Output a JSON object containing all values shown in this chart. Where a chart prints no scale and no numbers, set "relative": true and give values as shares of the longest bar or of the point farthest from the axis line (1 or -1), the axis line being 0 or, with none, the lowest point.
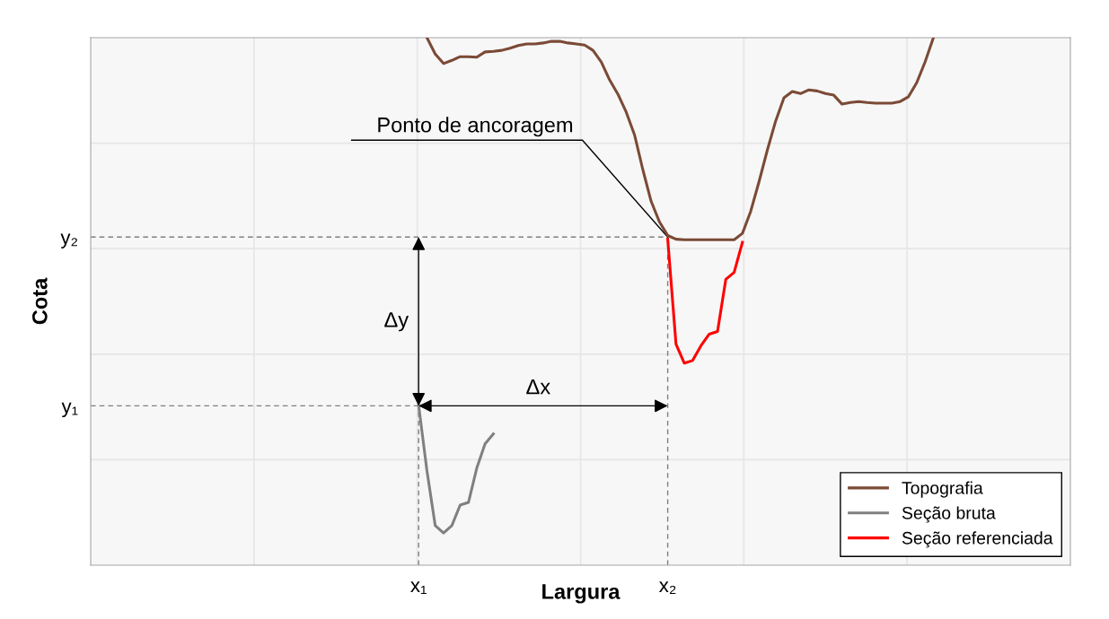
{
  "chart_data": {
    "type": "line",
    "xlabel": "Largura",
    "ylabel": "Cota",
    "relative": true,
    "categories": [
      null,
      null,
      null,
      null,
      null,
      null,
      null,
      null,
      null,
      null,
      null,
      null,
      null,
      null,
      null,
      null,
      null,
      null,
      null,
      null,
      null,
      null,
      null,
      null,
      null,
      null,
      null,
      null,
      null,
      null,
      null,
      null,
      null,
      null,
      null,
      null,
      null,
      null,
      null,
      "x₁",
      null,
      null,
      null,
      null,
      null,
      null,
      null,
      null,
      null,
      null,
      null,
      null,
      null,
      null,
      null,
      null,
      null,
      null,
      null,
      null,
      null,
      null,
      null,
      null,
      null,
      null,
      null,
      null,
      null,
      "x₂",
      null,
      null,
      null,
      null,
      null,
      null,
      null,
      null,
      null,
      null,
      null,
      null,
      null,
      null,
      null,
      null,
      null,
      null,
      null,
      null,
      null,
      null,
      null,
      null,
      null,
      null,
      null,
      null,
      null,
      null,
      null,
      null,
      null,
      null,
      null,
      null,
      null,
      null,
      null,
      null,
      null,
      null,
      null,
      null,
      null,
      null,
      null,
      null
    ],
    "grid": true,
    "legend": "bottom right",
    "series": [
      {
        "name": "Topografia",
        "color": "#7b4a36",
        "values": [
          null,
          null,
          null,
          null,
          null,
          null,
          null,
          null,
          null,
          null,
          null,
          null,
          null,
          null,
          null,
          null,
          null,
          null,
          null,
          null,
          null,
          null,
          null,
          null,
          null,
          null,
          null,
          null,
          null,
          null,
          null,
          null,
          null,
          null,
          null,
          null,
          null,
          null,
          null,
          null,
          1,
          0.969,
          0.951,
          0.957,
          0.964,
          0.964,
          0.963,
          0.973,
          0.974,
          0.976,
          0.98,
          0.985,
          0.988,
          0.988,
          0.99,
          0.993,
          0.993,
          0.99,
          0.988,
          0.986,
          0.976,
          0.954,
          0.92,
          0.893,
          0.859,
          0.816,
          0.75,
          0.69,
          0.651,
          0.625,
          0.618,
          0.617,
          0.617,
          0.617,
          0.617,
          0.617,
          0.617,
          0.617,
          0.629,
          0.671,
          0.727,
          0.787,
          0.842,
          0.886,
          0.898,
          0.894,
          0.901,
          0.899,
          0.894,
          0.891,
          0.874,
          0.877,
          0.879,
          0.877,
          0.876,
          0.876,
          0.876,
          0.879,
          0.888,
          0.915,
          0.954,
          1,
          null,
          null,
          null,
          null,
          null,
          null,
          null,
          null,
          null,
          null,
          null,
          null,
          null,
          null,
          null,
          null
        ]
      },
      {
        "name": "Seção bruta",
        "color": "#808080",
        "values": [
          null,
          null,
          null,
          null,
          null,
          null,
          null,
          null,
          null,
          null,
          null,
          null,
          null,
          null,
          null,
          null,
          null,
          null,
          null,
          null,
          null,
          null,
          null,
          null,
          null,
          null,
          null,
          null,
          null,
          null,
          null,
          null,
          null,
          null,
          null,
          null,
          null,
          null,
          null,
          0.303,
          0.179,
          0.075,
          0.061,
          0.075,
          0.114,
          0.119,
          0.184,
          0.23,
          0.249,
          null,
          null,
          null,
          null,
          null,
          null,
          null,
          null,
          null,
          null,
          null,
          null,
          null,
          null,
          null,
          null,
          null,
          null,
          null,
          null,
          null,
          null,
          null,
          null,
          null,
          null,
          null,
          null,
          null,
          null,
          null,
          null,
          null,
          null,
          null,
          null,
          null,
          null,
          null,
          null,
          null,
          null,
          null,
          null,
          null,
          null,
          null,
          null,
          null,
          null,
          null,
          null,
          null,
          null,
          null,
          null,
          null,
          null,
          null,
          null,
          null,
          null,
          null,
          null,
          null,
          null,
          null,
          null,
          null
        ]
      },
      {
        "name": "Seção referenciada",
        "color": "#ff0000",
        "values": [
          null,
          null,
          null,
          null,
          null,
          null,
          null,
          null,
          null,
          null,
          null,
          null,
          null,
          null,
          null,
          null,
          null,
          null,
          null,
          null,
          null,
          null,
          null,
          null,
          null,
          null,
          null,
          null,
          null,
          null,
          null,
          null,
          null,
          null,
          null,
          null,
          null,
          null,
          null,
          null,
          null,
          null,
          null,
          null,
          null,
          null,
          null,
          null,
          null,
          null,
          null,
          null,
          null,
          null,
          null,
          null,
          null,
          null,
          null,
          null,
          null,
          null,
          null,
          null,
          null,
          null,
          null,
          null,
          null,
          0.618,
          0.419,
          0.383,
          0.388,
          0.416,
          0.438,
          0.443,
          0.542,
          0.555,
          0.612,
          null,
          null,
          null,
          null,
          null,
          null,
          null,
          null,
          null,
          null,
          null,
          null,
          null,
          null,
          null,
          null,
          null,
          null,
          null,
          null,
          null,
          null,
          null,
          null,
          null,
          null,
          null,
          null,
          null,
          null,
          null,
          null,
          null,
          null,
          null,
          null,
          null,
          null,
          null
        ]
      }
    ],
    "ref_lines": [
      {
        "axis": "y",
        "value": 0.302,
        "label": "y₁",
        "line_style": "dashed"
      },
      {
        "axis": "y",
        "value": 0.622,
        "label": "y₂",
        "line_style": "dashed"
      }
    ],
    "annotations": [
      "Ponto de ancoragem",
      "Δy",
      "Δx"
    ]
  }
}
